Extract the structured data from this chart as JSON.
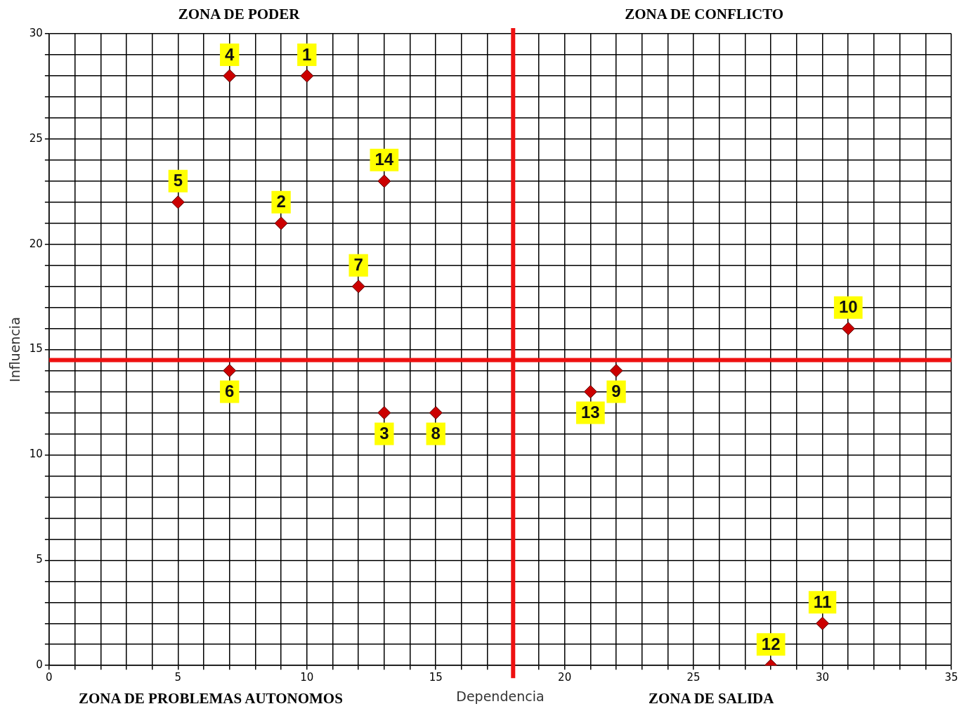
{
  "chart_data": {
    "type": "scatter",
    "xlabel": "Dependencia",
    "ylabel": "Influencia",
    "x": [
      10,
      9,
      13,
      7,
      5,
      7,
      12,
      15,
      22,
      31,
      30,
      28,
      21,
      13
    ],
    "series": [
      {
        "color": "#cc0000",
        "values": [
          28,
          21,
          12,
          28,
          22,
          14,
          18,
          12,
          14,
          16,
          2,
          0,
          13,
          23
        ]
      }
    ],
    "xlim": [
      0,
      35
    ],
    "xticks": [
      0,
      {
        "value": 1,
        "label": null
      },
      {
        "value": 2,
        "label": null
      },
      {
        "value": 3,
        "label": null
      },
      {
        "value": 4,
        "label": null
      },
      5,
      {
        "value": 6,
        "label": null
      },
      {
        "value": 7,
        "label": null
      },
      {
        "value": 8,
        "label": null
      },
      {
        "value": 9,
        "label": null
      },
      10,
      {
        "value": 11,
        "label": null
      },
      {
        "value": 12,
        "label": null
      },
      {
        "value": 13,
        "label": null
      },
      {
        "value": 14,
        "label": null
      },
      15,
      {
        "value": 16,
        "label": null
      },
      {
        "value": 17,
        "label": null
      },
      {
        "value": 18,
        "label": null
      },
      {
        "value": 19,
        "label": null
      },
      20,
      {
        "value": 21,
        "label": null
      },
      {
        "value": 22,
        "label": null
      },
      {
        "value": 23,
        "label": null
      },
      {
        "value": 24,
        "label": null
      },
      25,
      {
        "value": 26,
        "label": null
      },
      {
        "value": 27,
        "label": null
      },
      {
        "value": 28,
        "label": null
      },
      {
        "value": 29,
        "label": null
      },
      30,
      {
        "value": 31,
        "label": null
      },
      {
        "value": 32,
        "label": null
      },
      {
        "value": 33,
        "label": null
      },
      {
        "value": 34,
        "label": null
      },
      35
    ],
    "ylim": [
      0,
      30
    ],
    "yticks": [
      0,
      {
        "value": 1,
        "label": null
      },
      {
        "value": 2,
        "label": null
      },
      {
        "value": 3,
        "label": null
      },
      {
        "value": 4,
        "label": null
      },
      5,
      {
        "value": 6,
        "label": null
      },
      {
        "value": 7,
        "label": null
      },
      {
        "value": 8,
        "label": null
      },
      {
        "value": 9,
        "label": null
      },
      10,
      {
        "value": 11,
        "label": null
      },
      {
        "value": 12,
        "label": null
      },
      {
        "value": 13,
        "label": null
      },
      {
        "value": 14,
        "label": null
      },
      15,
      {
        "value": 16,
        "label": null
      },
      {
        "value": 17,
        "label": null
      },
      {
        "value": 18,
        "label": null
      },
      {
        "value": 19,
        "label": null
      },
      20,
      {
        "value": 21,
        "label": null
      },
      {
        "value": 22,
        "label": null
      },
      {
        "value": 23,
        "label": null
      },
      {
        "value": 24,
        "label": null
      },
      25,
      {
        "value": 26,
        "label": null
      },
      {
        "value": 27,
        "label": null
      },
      {
        "value": 28,
        "label": null
      },
      {
        "value": 29,
        "label": null
      },
      30
    ],
    "grid": true,
    "legend": false,
    "marker": "diamond",
    "ref_lines": [
      {
        "axis": "x",
        "value": 18,
        "color": "#ee1111"
      },
      {
        "axis": "y",
        "value": 14.5,
        "color": "#ee1111"
      }
    ],
    "annotations": [
      "ZONA DE PODER",
      "ZONA DE CONFLICTO",
      "ZONA DE PROBLEMAS AUTONOMOS",
      "ZONA DE SALIDA",
      {
        "text": "1",
        "x": 10,
        "y": 28
      },
      {
        "text": "2",
        "x": 9,
        "y": 21
      },
      {
        "text": "3",
        "x": 13,
        "y": 12
      },
      {
        "text": "4",
        "x": 7,
        "y": 28
      },
      {
        "text": "5",
        "x": 5,
        "y": 22
      },
      {
        "text": "6",
        "x": 7,
        "y": 14
      },
      {
        "text": "7",
        "x": 12,
        "y": 18
      },
      {
        "text": "8",
        "x": 15,
        "y": 12
      },
      {
        "text": "9",
        "x": 22,
        "y": 14
      },
      {
        "text": "10",
        "x": 31,
        "y": 16
      },
      {
        "text": "11",
        "x": 30,
        "y": 2
      },
      {
        "text": "12",
        "x": 28,
        "y": 0
      },
      {
        "text": "13",
        "x": 21,
        "y": 13
      },
      {
        "text": "14",
        "x": 13,
        "y": 23
      }
    ]
  }
}
